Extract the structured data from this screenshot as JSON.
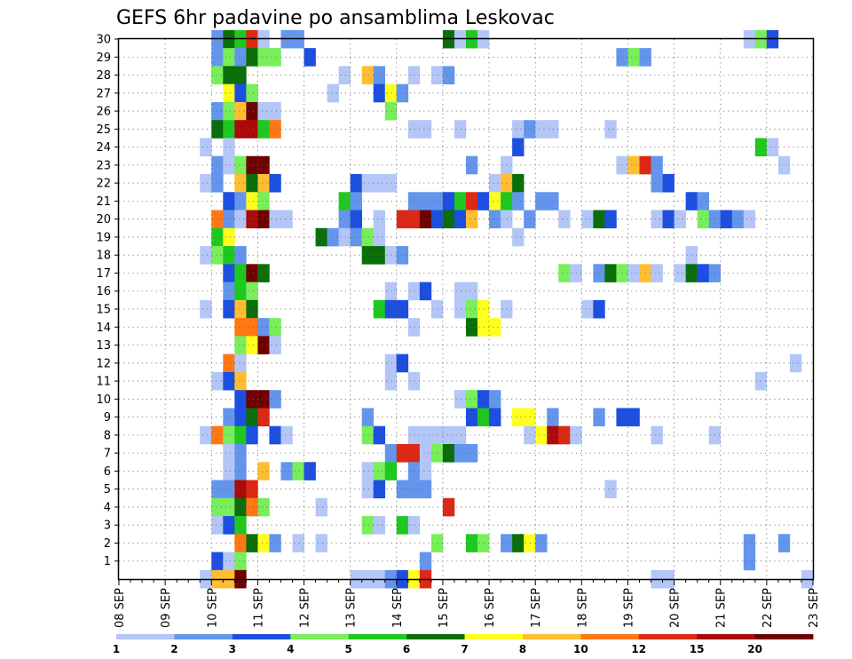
{
  "chart_data": {
    "type": "heatmap",
    "title": "GEFS 6hr padavine po ansamblima Leskovac",
    "xlabel": "",
    "ylabel": "",
    "grid": true,
    "x_tick_labels": [
      "08 SEP",
      "09 SEP",
      "10 SEP",
      "11 SEP",
      "12 SEP",
      "13 SEP",
      "14 SEP",
      "15 SEP",
      "16 SEP",
      "17 SEP",
      "18 SEP",
      "19 SEP",
      "20 SEP",
      "21 SEP",
      "22 SEP",
      "23 SEP"
    ],
    "x_range": [
      "08 SEP 00z",
      "23 SEP 00z"
    ],
    "time_step": "6hr",
    "y_tick_labels": [
      "1",
      "2",
      "3",
      "4",
      "5",
      "6",
      "7",
      "8",
      "9",
      "10",
      "11",
      "12",
      "13",
      "14",
      "15",
      "16",
      "17",
      "18",
      "19",
      "20",
      "21",
      "22",
      "23",
      "24",
      "25",
      "26",
      "27",
      "28",
      "29",
      "30"
    ],
    "ylim": [
      0,
      30
    ],
    "legend": {
      "position": "bottom",
      "labels": [
        "1",
        "2",
        "3",
        "4",
        "5",
        "6",
        "7",
        "8",
        "10",
        "12",
        "15",
        "20"
      ],
      "colors": [
        "#b3c6f7",
        "#6495ed",
        "#1c4fe0",
        "#78ee5a",
        "#1ec81e",
        "#0a6e0a",
        "#ffff1e",
        "#ffbe32",
        "#ff7814",
        "#dc2814",
        "#aa0a0a",
        "#6e0000"
      ]
    },
    "cells": [
      [
        30,
        10.0,
        2
      ],
      [
        30,
        10.25,
        6
      ],
      [
        30,
        10.5,
        5
      ],
      [
        30,
        10.75,
        10
      ],
      [
        30,
        11.0,
        1
      ],
      [
        30,
        11.5,
        2
      ],
      [
        30,
        11.75,
        2
      ],
      [
        30,
        15.0,
        6
      ],
      [
        30,
        15.25,
        1
      ],
      [
        30,
        15.5,
        5
      ],
      [
        30,
        15.75,
        1
      ],
      [
        30,
        21.5,
        1
      ],
      [
        30,
        21.75,
        4
      ],
      [
        30,
        22.0,
        3
      ],
      [
        29,
        10.0,
        2
      ],
      [
        29,
        10.25,
        4
      ],
      [
        29,
        10.5,
        2
      ],
      [
        29,
        10.75,
        6
      ],
      [
        29,
        11.0,
        4
      ],
      [
        29,
        11.25,
        4
      ],
      [
        29,
        12.0,
        3
      ],
      [
        29,
        18.75,
        2
      ],
      [
        29,
        19.0,
        4
      ],
      [
        29,
        19.25,
        2
      ],
      [
        28,
        10.0,
        4
      ],
      [
        28,
        10.25,
        6
      ],
      [
        28,
        10.5,
        6
      ],
      [
        28,
        12.75,
        1
      ],
      [
        28,
        13.25,
        8
      ],
      [
        28,
        13.5,
        2
      ],
      [
        28,
        14.25,
        1
      ],
      [
        28,
        14.75,
        1
      ],
      [
        28,
        15.0,
        2
      ],
      [
        27,
        10.25,
        7
      ],
      [
        27,
        10.5,
        3
      ],
      [
        27,
        10.75,
        4
      ],
      [
        27,
        12.5,
        1
      ],
      [
        27,
        13.5,
        3
      ],
      [
        27,
        13.75,
        7
      ],
      [
        27,
        14.0,
        2
      ],
      [
        26,
        10.0,
        2
      ],
      [
        26,
        10.25,
        4
      ],
      [
        26,
        10.5,
        8
      ],
      [
        26,
        10.75,
        12
      ],
      [
        26,
        11.0,
        1
      ],
      [
        26,
        11.25,
        1
      ],
      [
        26,
        13.75,
        4
      ],
      [
        25,
        10.0,
        6
      ],
      [
        25,
        10.25,
        5
      ],
      [
        25,
        10.5,
        11
      ],
      [
        25,
        10.75,
        11
      ],
      [
        25,
        11.0,
        5
      ],
      [
        25,
        11.25,
        9
      ],
      [
        25,
        14.25,
        1
      ],
      [
        25,
        14.5,
        1
      ],
      [
        25,
        15.25,
        1
      ],
      [
        25,
        16.5,
        1
      ],
      [
        25,
        16.75,
        2
      ],
      [
        25,
        17.0,
        1
      ],
      [
        25,
        17.25,
        1
      ],
      [
        25,
        18.5,
        1
      ],
      [
        24,
        9.75,
        1
      ],
      [
        24,
        10.25,
        1
      ],
      [
        24,
        16.5,
        3
      ],
      [
        24,
        21.75,
        5
      ],
      [
        24,
        22.0,
        1
      ],
      [
        23,
        10.0,
        2
      ],
      [
        23,
        10.25,
        1
      ],
      [
        23,
        10.5,
        4
      ],
      [
        23,
        10.75,
        12
      ],
      [
        23,
        11.0,
        12
      ],
      [
        23,
        15.5,
        2
      ],
      [
        23,
        16.25,
        1
      ],
      [
        23,
        18.75,
        1
      ],
      [
        23,
        19.0,
        8
      ],
      [
        23,
        19.25,
        10
      ],
      [
        23,
        19.5,
        2
      ],
      [
        23,
        22.25,
        1
      ],
      [
        22,
        9.75,
        1
      ],
      [
        22,
        10.0,
        2
      ],
      [
        22,
        10.5,
        8
      ],
      [
        22,
        10.75,
        6
      ],
      [
        22,
        11.0,
        8
      ],
      [
        22,
        11.25,
        3
      ],
      [
        22,
        13.0,
        3
      ],
      [
        22,
        13.25,
        1
      ],
      [
        22,
        13.5,
        1
      ],
      [
        22,
        13.75,
        1
      ],
      [
        22,
        16.0,
        1
      ],
      [
        22,
        16.25,
        8
      ],
      [
        22,
        16.5,
        6
      ],
      [
        22,
        19.5,
        2
      ],
      [
        22,
        19.75,
        3
      ],
      [
        21,
        10.25,
        3
      ],
      [
        21,
        10.5,
        2
      ],
      [
        21,
        10.75,
        7
      ],
      [
        21,
        11.0,
        4
      ],
      [
        21,
        12.75,
        5
      ],
      [
        21,
        13.0,
        2
      ],
      [
        21,
        14.25,
        2
      ],
      [
        21,
        14.5,
        2
      ],
      [
        21,
        14.75,
        2
      ],
      [
        21,
        15.0,
        3
      ],
      [
        21,
        15.25,
        5
      ],
      [
        21,
        15.5,
        10
      ],
      [
        21,
        15.75,
        3
      ],
      [
        21,
        16.0,
        7
      ],
      [
        21,
        16.25,
        5
      ],
      [
        21,
        16.5,
        2
      ],
      [
        21,
        17.0,
        2
      ],
      [
        21,
        17.25,
        2
      ],
      [
        21,
        20.25,
        3
      ],
      [
        21,
        20.5,
        2
      ],
      [
        20,
        10.0,
        9
      ],
      [
        20,
        10.25,
        2
      ],
      [
        20,
        10.5,
        1
      ],
      [
        20,
        10.75,
        11
      ],
      [
        20,
        11.0,
        12
      ],
      [
        20,
        11.25,
        1
      ],
      [
        20,
        11.5,
        1
      ],
      [
        20,
        12.75,
        2
      ],
      [
        20,
        13.0,
        3
      ],
      [
        20,
        13.5,
        1
      ],
      [
        20,
        14.0,
        10
      ],
      [
        20,
        14.25,
        10
      ],
      [
        20,
        14.5,
        12
      ],
      [
        20,
        14.75,
        3
      ],
      [
        20,
        15.0,
        6
      ],
      [
        20,
        15.25,
        3
      ],
      [
        20,
        15.5,
        8
      ],
      [
        20,
        16.0,
        2
      ],
      [
        20,
        16.25,
        1
      ],
      [
        20,
        16.75,
        2
      ],
      [
        20,
        17.5,
        1
      ],
      [
        20,
        18.0,
        1
      ],
      [
        20,
        18.25,
        6
      ],
      [
        20,
        18.5,
        3
      ],
      [
        20,
        19.5,
        1
      ],
      [
        20,
        19.75,
        3
      ],
      [
        20,
        20.0,
        1
      ],
      [
        20,
        20.5,
        4
      ],
      [
        20,
        20.75,
        2
      ],
      [
        20,
        21.0,
        3
      ],
      [
        20,
        21.25,
        2
      ],
      [
        20,
        21.5,
        1
      ],
      [
        19,
        10.0,
        5
      ],
      [
        19,
        10.25,
        7
      ],
      [
        19,
        12.25,
        6
      ],
      [
        19,
        12.5,
        2
      ],
      [
        19,
        12.75,
        1
      ],
      [
        19,
        13.0,
        2
      ],
      [
        19,
        13.25,
        4
      ],
      [
        19,
        13.5,
        1
      ],
      [
        19,
        16.5,
        1
      ],
      [
        18,
        9.75,
        1
      ],
      [
        18,
        10.0,
        4
      ],
      [
        18,
        10.25,
        5
      ],
      [
        18,
        10.5,
        2
      ],
      [
        18,
        13.25,
        6
      ],
      [
        18,
        13.5,
        6
      ],
      [
        18,
        13.75,
        1
      ],
      [
        18,
        14.0,
        2
      ],
      [
        18,
        20.25,
        1
      ],
      [
        17,
        10.25,
        3
      ],
      [
        17,
        10.5,
        5
      ],
      [
        17,
        10.75,
        12
      ],
      [
        17,
        11.0,
        6
      ],
      [
        17,
        17.5,
        4
      ],
      [
        17,
        17.75,
        1
      ],
      [
        17,
        18.25,
        2
      ],
      [
        17,
        18.5,
        6
      ],
      [
        17,
        18.75,
        4
      ],
      [
        17,
        19.0,
        1
      ],
      [
        17,
        19.25,
        8
      ],
      [
        17,
        19.5,
        1
      ],
      [
        17,
        20.0,
        1
      ],
      [
        17,
        20.25,
        6
      ],
      [
        17,
        20.5,
        3
      ],
      [
        17,
        20.75,
        2
      ],
      [
        16,
        10.25,
        2
      ],
      [
        16,
        10.5,
        5
      ],
      [
        16,
        10.75,
        4
      ],
      [
        16,
        13.75,
        1
      ],
      [
        16,
        14.25,
        1
      ],
      [
        16,
        14.5,
        3
      ],
      [
        16,
        15.25,
        1
      ],
      [
        16,
        15.5,
        1
      ],
      [
        15,
        9.75,
        1
      ],
      [
        15,
        10.25,
        3
      ],
      [
        15,
        10.5,
        8
      ],
      [
        15,
        10.75,
        6
      ],
      [
        15,
        13.5,
        5
      ],
      [
        15,
        13.75,
        3
      ],
      [
        15,
        14.0,
        3
      ],
      [
        15,
        14.75,
        1
      ],
      [
        15,
        15.25,
        1
      ],
      [
        15,
        15.5,
        4
      ],
      [
        15,
        15.75,
        7
      ],
      [
        15,
        16.25,
        1
      ],
      [
        15,
        18.0,
        1
      ],
      [
        15,
        18.25,
        3
      ],
      [
        14,
        10.5,
        9
      ],
      [
        14,
        10.75,
        9
      ],
      [
        14,
        11.0,
        2
      ],
      [
        14,
        11.25,
        4
      ],
      [
        14,
        14.25,
        1
      ],
      [
        14,
        15.5,
        6
      ],
      [
        14,
        15.75,
        7
      ],
      [
        14,
        16.0,
        7
      ],
      [
        13,
        10.5,
        4
      ],
      [
        13,
        10.75,
        7
      ],
      [
        13,
        11.0,
        12
      ],
      [
        13,
        11.25,
        1
      ],
      [
        12,
        10.25,
        9
      ],
      [
        12,
        10.5,
        1
      ],
      [
        12,
        13.75,
        1
      ],
      [
        12,
        14.0,
        3
      ],
      [
        12,
        22.5,
        1
      ],
      [
        11,
        10.0,
        1
      ],
      [
        11,
        10.25,
        3
      ],
      [
        11,
        10.5,
        8
      ],
      [
        11,
        13.75,
        1
      ],
      [
        11,
        14.25,
        1
      ],
      [
        11,
        21.75,
        1
      ],
      [
        10,
        10.5,
        3
      ],
      [
        10,
        10.75,
        12
      ],
      [
        10,
        11.0,
        12
      ],
      [
        10,
        11.25,
        2
      ],
      [
        10,
        15.25,
        1
      ],
      [
        10,
        15.5,
        4
      ],
      [
        10,
        15.75,
        3
      ],
      [
        10,
        16.0,
        2
      ],
      [
        9,
        10.25,
        2
      ],
      [
        9,
        10.5,
        3
      ],
      [
        9,
        10.75,
        6
      ],
      [
        9,
        11.0,
        10
      ],
      [
        9,
        13.25,
        2
      ],
      [
        9,
        15.5,
        3
      ],
      [
        9,
        15.75,
        5
      ],
      [
        9,
        16.0,
        3
      ],
      [
        9,
        16.5,
        7
      ],
      [
        9,
        16.75,
        7
      ],
      [
        9,
        17.25,
        2
      ],
      [
        9,
        18.25,
        2
      ],
      [
        9,
        18.75,
        3
      ],
      [
        9,
        19.0,
        3
      ],
      [
        8,
        9.75,
        1
      ],
      [
        8,
        10.0,
        9
      ],
      [
        8,
        10.25,
        4
      ],
      [
        8,
        10.5,
        5
      ],
      [
        8,
        10.75,
        3
      ],
      [
        8,
        11.25,
        3
      ],
      [
        8,
        11.5,
        1
      ],
      [
        8,
        13.25,
        4
      ],
      [
        8,
        13.5,
        3
      ],
      [
        8,
        14.25,
        1
      ],
      [
        8,
        14.5,
        1
      ],
      [
        8,
        14.75,
        1
      ],
      [
        8,
        15.0,
        1
      ],
      [
        8,
        15.25,
        1
      ],
      [
        8,
        16.75,
        1
      ],
      [
        8,
        17.0,
        7
      ],
      [
        8,
        17.25,
        11
      ],
      [
        8,
        17.5,
        10
      ],
      [
        8,
        17.75,
        1
      ],
      [
        8,
        19.5,
        1
      ],
      [
        8,
        20.75,
        1
      ],
      [
        7,
        10.25,
        1
      ],
      [
        7,
        10.5,
        2
      ],
      [
        7,
        13.75,
        2
      ],
      [
        7,
        14.0,
        10
      ],
      [
        7,
        14.25,
        10
      ],
      [
        7,
        14.5,
        1
      ],
      [
        7,
        14.75,
        4
      ],
      [
        7,
        15.0,
        6
      ],
      [
        7,
        15.25,
        2
      ],
      [
        7,
        15.5,
        2
      ],
      [
        6,
        10.25,
        1
      ],
      [
        6,
        10.5,
        2
      ],
      [
        6,
        11.0,
        8
      ],
      [
        6,
        11.5,
        2
      ],
      [
        6,
        11.75,
        4
      ],
      [
        6,
        12.0,
        3
      ],
      [
        6,
        13.25,
        1
      ],
      [
        6,
        13.5,
        4
      ],
      [
        6,
        13.75,
        5
      ],
      [
        6,
        14.25,
        2
      ],
      [
        6,
        14.5,
        1
      ],
      [
        5,
        10.0,
        2
      ],
      [
        5,
        10.25,
        2
      ],
      [
        5,
        10.5,
        11
      ],
      [
        5,
        10.75,
        10
      ],
      [
        5,
        13.25,
        1
      ],
      [
        5,
        13.5,
        3
      ],
      [
        5,
        14.0,
        2
      ],
      [
        5,
        14.25,
        2
      ],
      [
        5,
        14.5,
        2
      ],
      [
        5,
        18.5,
        1
      ],
      [
        4,
        10.0,
        4
      ],
      [
        4,
        10.25,
        4
      ],
      [
        4,
        10.5,
        6
      ],
      [
        4,
        10.75,
        9
      ],
      [
        4,
        11.0,
        4
      ],
      [
        4,
        12.25,
        1
      ],
      [
        4,
        15.0,
        10
      ],
      [
        3,
        10.0,
        1
      ],
      [
        3,
        10.25,
        3
      ],
      [
        3,
        10.5,
        5
      ],
      [
        3,
        13.25,
        4
      ],
      [
        3,
        13.5,
        1
      ],
      [
        3,
        14.0,
        5
      ],
      [
        3,
        14.25,
        1
      ],
      [
        2,
        10.5,
        9
      ],
      [
        2,
        10.75,
        6
      ],
      [
        2,
        11.0,
        7
      ],
      [
        2,
        11.25,
        2
      ],
      [
        2,
        11.75,
        1
      ],
      [
        2,
        12.25,
        1
      ],
      [
        2,
        14.75,
        4
      ],
      [
        2,
        15.5,
        5
      ],
      [
        2,
        15.75,
        4
      ],
      [
        2,
        16.25,
        2
      ],
      [
        2,
        16.5,
        6
      ],
      [
        2,
        16.75,
        7
      ],
      [
        2,
        17.0,
        2
      ],
      [
        2,
        21.5,
        2
      ],
      [
        2,
        22.25,
        2
      ],
      [
        1,
        10.0,
        3
      ],
      [
        1,
        10.25,
        1
      ],
      [
        1,
        10.5,
        4
      ],
      [
        1,
        14.5,
        2
      ],
      [
        1,
        21.5,
        2
      ],
      [
        0,
        9.75,
        1
      ],
      [
        0,
        10.0,
        8
      ],
      [
        0,
        10.25,
        8
      ],
      [
        0,
        10.5,
        12
      ],
      [
        0,
        13.0,
        1
      ],
      [
        0,
        13.25,
        1
      ],
      [
        0,
        13.5,
        1
      ],
      [
        0,
        13.75,
        2
      ],
      [
        0,
        14.0,
        3
      ],
      [
        0,
        14.25,
        7
      ],
      [
        0,
        14.5,
        10
      ],
      [
        0,
        19.5,
        1
      ],
      [
        0,
        19.75,
        1
      ],
      [
        0,
        22.75,
        1
      ]
    ]
  }
}
